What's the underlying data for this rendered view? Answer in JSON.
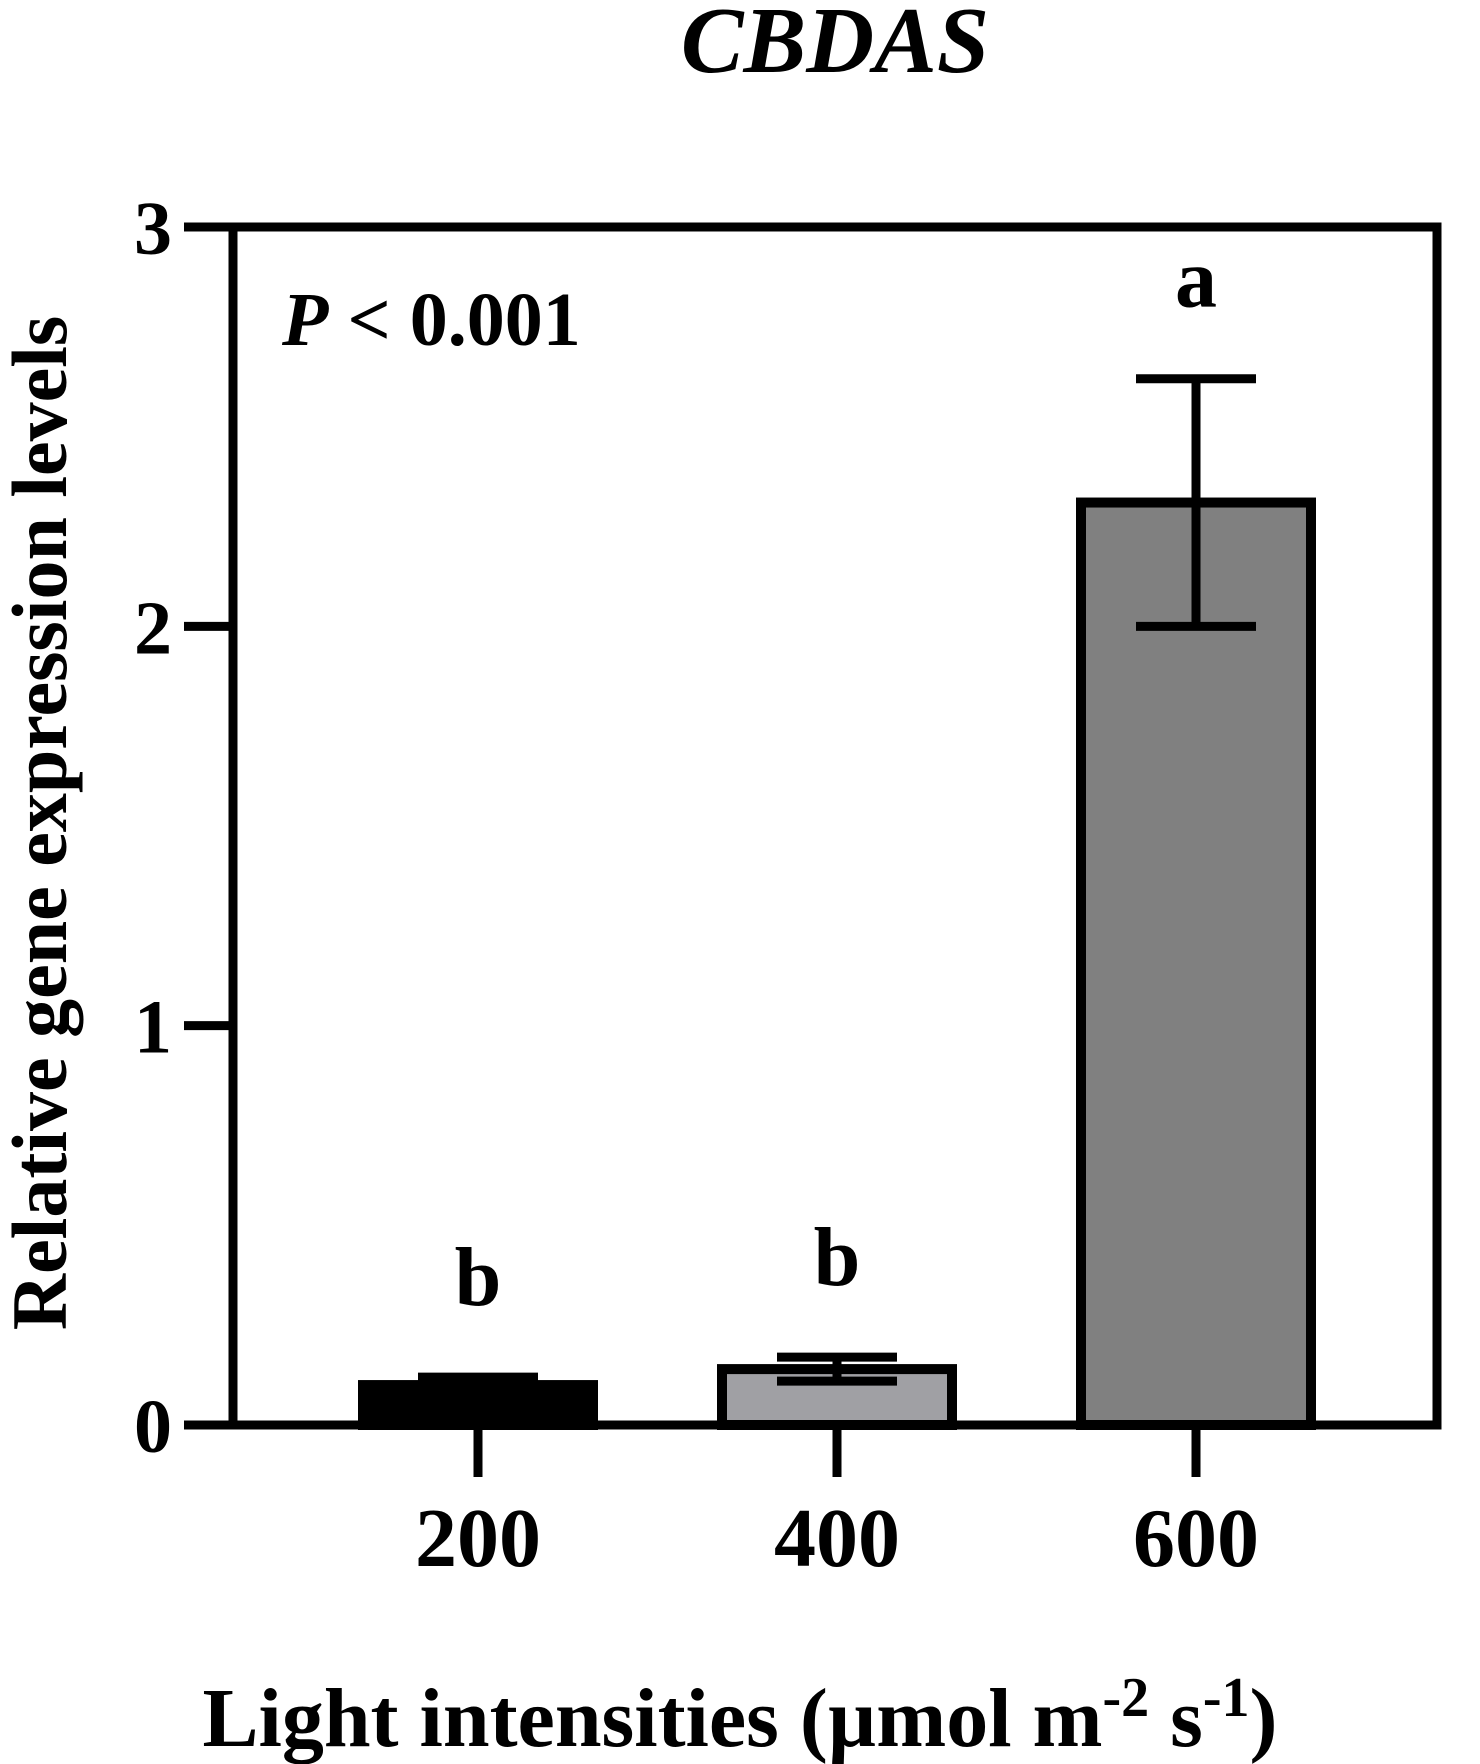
{
  "chart_data": {
    "type": "bar",
    "title": "CBDAS",
    "xlabel_main": "Light intensities (µmol m",
    "xlabel_sup1": "-2",
    "xlabel_mid": " s",
    "xlabel_sup2": "-1",
    "xlabel_end": ")",
    "ylabel": "Relative gene expression levels",
    "categories": [
      "200",
      "400",
      "600"
    ],
    "values": [
      0.1,
      0.14,
      2.31
    ],
    "errors": [
      0.02,
      0.03,
      0.31
    ],
    "letters": [
      "b",
      "b",
      "a"
    ],
    "bar_colors": [
      "#000000",
      "#a0a0a4",
      "#808080"
    ],
    "annotation_p": "P",
    "annotation_rest": " < 0.001",
    "ylim": [
      0,
      3
    ],
    "yticks": [
      0,
      1,
      2,
      3
    ],
    "grid": false,
    "legend": "none"
  }
}
